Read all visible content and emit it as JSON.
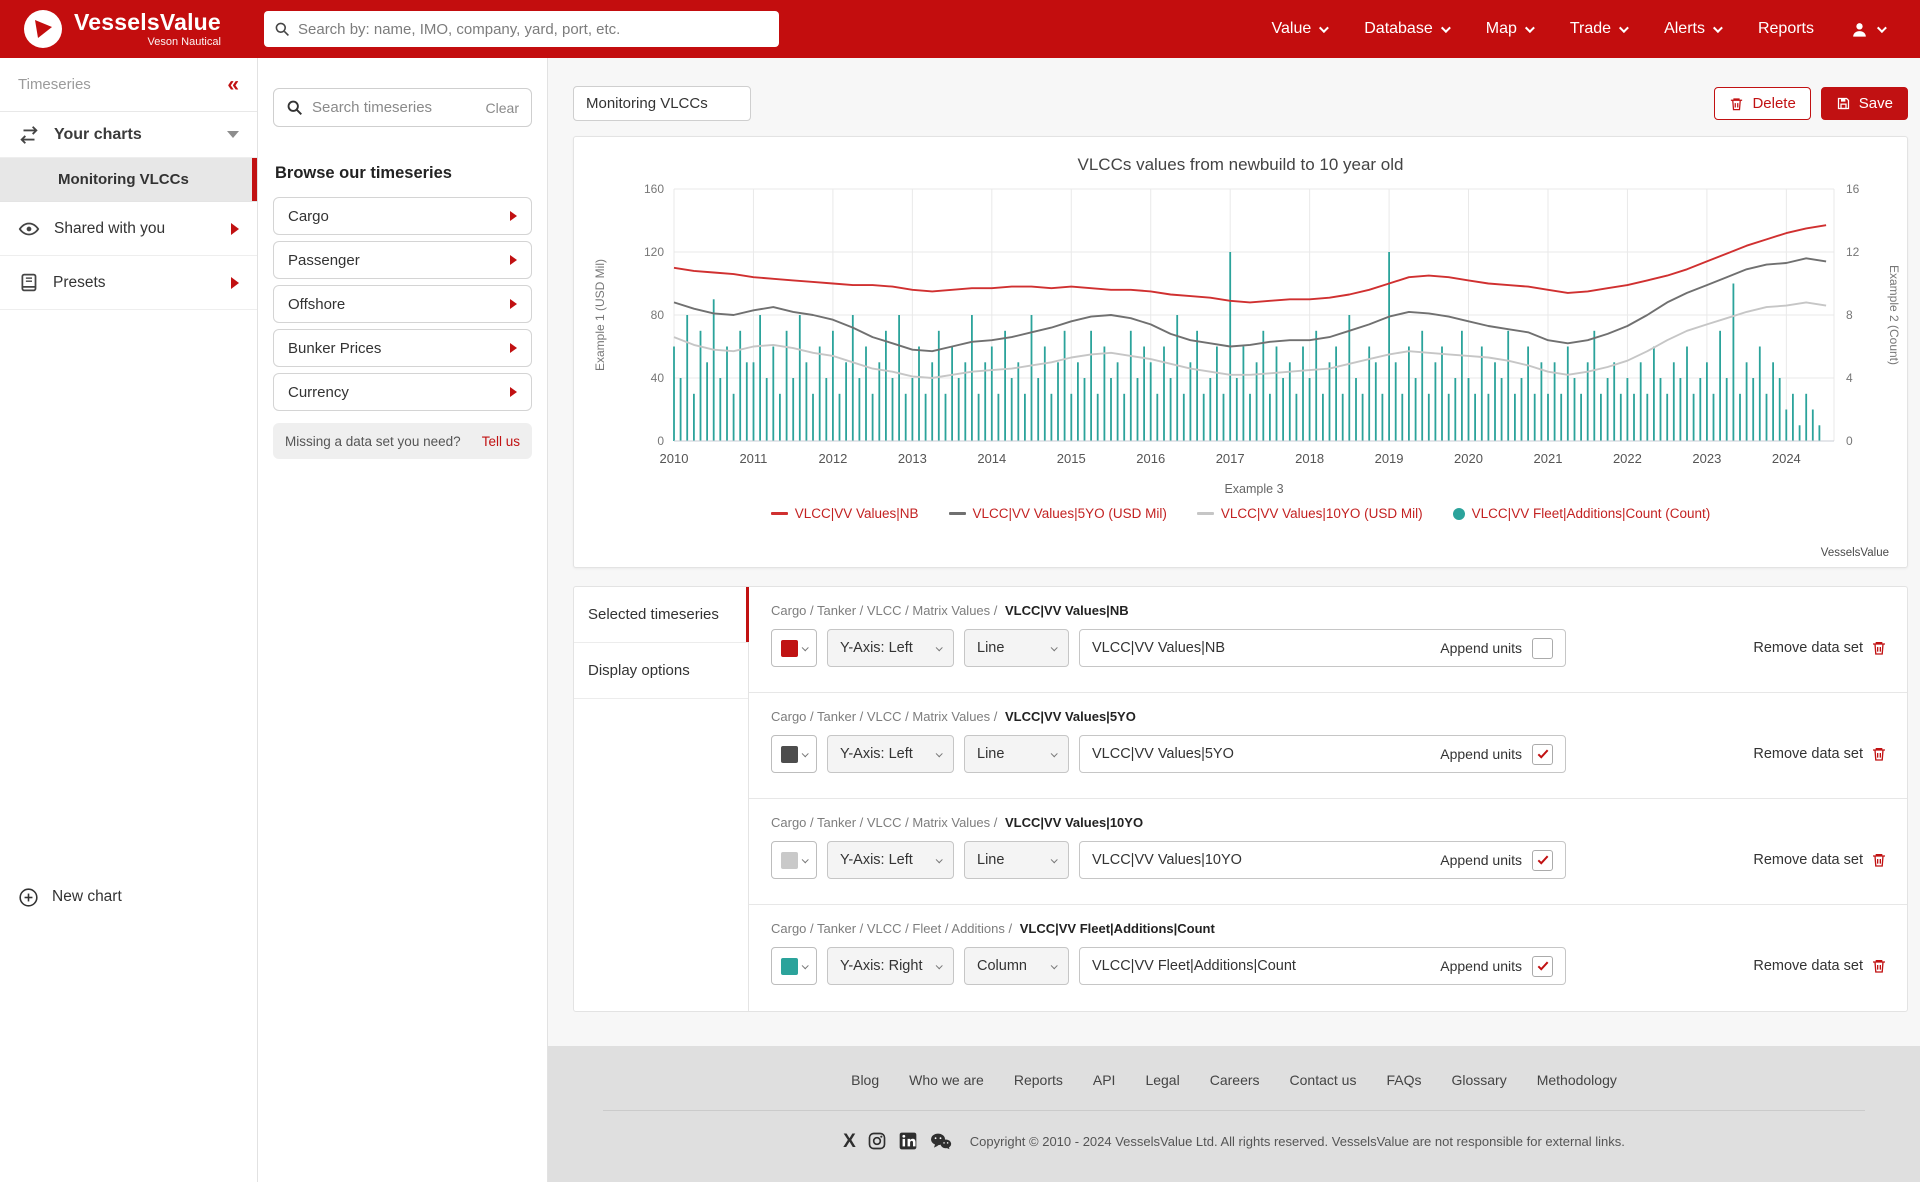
{
  "navbar": {
    "brand": {
      "name": "VesselsValue",
      "subtitle": "Veson Nautical"
    },
    "search_placeholder": "Search by: name, IMO, company, yard, port, etc.",
    "items": [
      {
        "label": "Value",
        "caret": true
      },
      {
        "label": "Database",
        "caret": true
      },
      {
        "label": "Map",
        "caret": true
      },
      {
        "label": "Trade",
        "caret": true
      },
      {
        "label": "Alerts",
        "caret": true
      },
      {
        "label": "Reports",
        "caret": false
      }
    ]
  },
  "sidebar": {
    "title": "Timeseries",
    "collapse_icon": "«",
    "your_charts": "Your charts",
    "active_chart": "Monitoring VLCCs",
    "shared": "Shared with you",
    "presets": "Presets",
    "new_chart": "New chart"
  },
  "browser": {
    "search_placeholder": "Search timeseries",
    "clear": "Clear",
    "heading": "Browse our timeseries",
    "categories": [
      "Cargo",
      "Passenger",
      "Offshore",
      "Bunker Prices",
      "Currency"
    ],
    "missing": "Missing a data set you need?",
    "tell_us": "Tell us"
  },
  "toolbar": {
    "chart_name": "Monitoring VLCCs",
    "delete_label": "Delete",
    "save_label": "Save"
  },
  "chart_data": {
    "type": "mixed",
    "title": "VLCCs values from newbuild to 10 year old",
    "x_axis": {
      "label": "Example 3",
      "range": [
        2010,
        2024.6
      ],
      "ticks": [
        2010,
        2011,
        2012,
        2013,
        2014,
        2015,
        2016,
        2017,
        2018,
        2019,
        2020,
        2021,
        2022,
        2023,
        2024
      ]
    },
    "y_left": {
      "label": "Example 1 (USD Mil)",
      "range": [
        0,
        160
      ],
      "ticks": [
        0,
        40,
        80,
        120,
        160
      ]
    },
    "y_right": {
      "label": "Example 2 (Count)",
      "range": [
        0,
        16
      ],
      "ticks": [
        0,
        4,
        8,
        12,
        16
      ]
    },
    "grid": true,
    "legend_position": "bottom",
    "watermark": "VesselsValue",
    "series": [
      {
        "name": "VLCC|VV Values|NB",
        "legend": "VLCC|VV Values|NB",
        "type": "line",
        "axis": "left",
        "color": "#d03030",
        "x_start": 2010,
        "x_step": 0.25,
        "values": [
          110,
          108,
          107,
          106,
          104,
          103,
          102,
          101,
          100,
          99,
          99,
          98,
          96,
          95,
          96,
          97,
          97,
          98,
          98,
          97,
          98,
          97,
          96,
          96,
          95,
          93,
          92,
          91,
          89,
          88,
          89,
          90,
          90,
          91,
          93,
          96,
          100,
          104,
          105,
          104,
          102,
          100,
          99,
          98,
          96,
          94,
          95,
          97,
          99,
          102,
          105,
          109,
          114,
          119,
          124,
          128,
          132,
          135,
          137
        ]
      },
      {
        "name": "VLCC|VV Values|5YO",
        "legend": "VLCC|VV Values|5YO (USD Mil)",
        "type": "line",
        "axis": "left",
        "color": "#707070",
        "x_start": 2010,
        "x_step": 0.25,
        "values": [
          88,
          84,
          81,
          80,
          83,
          85,
          82,
          80,
          77,
          72,
          66,
          62,
          58,
          57,
          60,
          63,
          64,
          66,
          69,
          72,
          76,
          79,
          80,
          78,
          74,
          68,
          64,
          62,
          60,
          61,
          63,
          64,
          64,
          66,
          70,
          74,
          79,
          82,
          81,
          79,
          76,
          73,
          71,
          69,
          64,
          62,
          64,
          68,
          73,
          80,
          88,
          94,
          99,
          104,
          109,
          112,
          113,
          116,
          114
        ]
      },
      {
        "name": "VLCC|VV Values|10YO",
        "legend": "VLCC|VV Values|10YO (USD Mil)",
        "type": "line",
        "axis": "left",
        "color": "#c6c6c6",
        "x_start": 2010,
        "x_step": 0.25,
        "values": [
          66,
          61,
          58,
          57,
          60,
          61,
          59,
          56,
          54,
          50,
          46,
          44,
          41,
          40,
          42,
          44,
          45,
          46,
          48,
          50,
          53,
          55,
          56,
          54,
          52,
          49,
          46,
          44,
          42,
          42,
          43,
          44,
          45,
          46,
          49,
          52,
          55,
          57,
          56,
          55,
          54,
          53,
          51,
          48,
          44,
          42,
          44,
          47,
          51,
          57,
          64,
          70,
          74,
          78,
          82,
          85,
          86,
          88,
          86
        ]
      },
      {
        "name": "VLCC|VV Fleet|Additions|Count",
        "legend": "VLCC|VV Fleet|Additions|Count (Count)",
        "type": "column",
        "axis": "right",
        "color": "#2ba39b",
        "x_start": 2010,
        "x_step": 0.0833333,
        "values": [
          6,
          4,
          8,
          3,
          7,
          5,
          9,
          4,
          6,
          3,
          7,
          5,
          5,
          8,
          4,
          6,
          3,
          7,
          4,
          8,
          5,
          3,
          6,
          4,
          7,
          3,
          5,
          8,
          4,
          6,
          3,
          5,
          7,
          4,
          8,
          3,
          4,
          6,
          3,
          5,
          7,
          3,
          6,
          4,
          5,
          8,
          3,
          5,
          6,
          3,
          7,
          4,
          5,
          3,
          8,
          4,
          6,
          3,
          5,
          7,
          3,
          5,
          4,
          7,
          3,
          6,
          4,
          5,
          3,
          7,
          4,
          6,
          5,
          3,
          6,
          4,
          8,
          3,
          5,
          7,
          3,
          4,
          6,
          3,
          12,
          4,
          6,
          3,
          5,
          7,
          3,
          6,
          4,
          5,
          3,
          6,
          4,
          7,
          3,
          5,
          6,
          3,
          8,
          4,
          3,
          6,
          5,
          3,
          12,
          5,
          3,
          6,
          4,
          7,
          3,
          5,
          6,
          3,
          4,
          7,
          4,
          3,
          6,
          3,
          5,
          4,
          7,
          3,
          4,
          6,
          3,
          5,
          3,
          5,
          3,
          6,
          4,
          3,
          5,
          7,
          3,
          4,
          5,
          3,
          4,
          3,
          5,
          3,
          6,
          4,
          3,
          5,
          4,
          6,
          3,
          4,
          5,
          3,
          7,
          4,
          10,
          3,
          5,
          4,
          6,
          3,
          5,
          4,
          2,
          3,
          1,
          3,
          2,
          1
        ]
      }
    ]
  },
  "panel": {
    "tabs": [
      "Selected timeseries",
      "Display options"
    ],
    "append_units": "Append units",
    "remove": "Remove data set",
    "rows": [
      {
        "breadcrumb": "Cargo / Tanker / VLCC / Matrix Values /",
        "bold": "VLCC|VV Values|NB",
        "color": "#c01313",
        "yaxis": "Y-Axis: Left",
        "style": "Line",
        "value": "VLCC|VV Values|NB",
        "checked": false
      },
      {
        "breadcrumb": "Cargo / Tanker / VLCC / Matrix Values /",
        "bold": "VLCC|VV Values|5YO",
        "color": "#4d4d4d",
        "yaxis": "Y-Axis: Left",
        "style": "Line",
        "value": "VLCC|VV Values|5YO",
        "checked": true
      },
      {
        "breadcrumb": "Cargo / Tanker / VLCC / Matrix Values /",
        "bold": "VLCC|VV Values|10YO",
        "color": "#c9c9c9",
        "yaxis": "Y-Axis: Left",
        "style": "Line",
        "value": "VLCC|VV Values|10YO",
        "checked": true
      },
      {
        "breadcrumb": "Cargo / Tanker / VLCC / Fleet / Additions /",
        "bold": "VLCC|VV Fleet|Additions|Count",
        "color": "#2ba39b",
        "yaxis": "Y-Axis: Right",
        "style": "Column",
        "value": "VLCC|VV Fleet|Additions|Count",
        "checked": true
      }
    ]
  },
  "footer": {
    "links": [
      "Blog",
      "Who we are",
      "Reports",
      "API",
      "Legal",
      "Careers",
      "Contact us",
      "FAQs",
      "Glossary",
      "Methodology"
    ],
    "social": [
      "x-icon",
      "instagram-icon",
      "linkedin-icon",
      "wechat-icon"
    ],
    "copyright": "Copyright © 2010 - 2024 VesselsValue Ltd. All rights reserved. VesselsValue are not responsible for external links."
  }
}
